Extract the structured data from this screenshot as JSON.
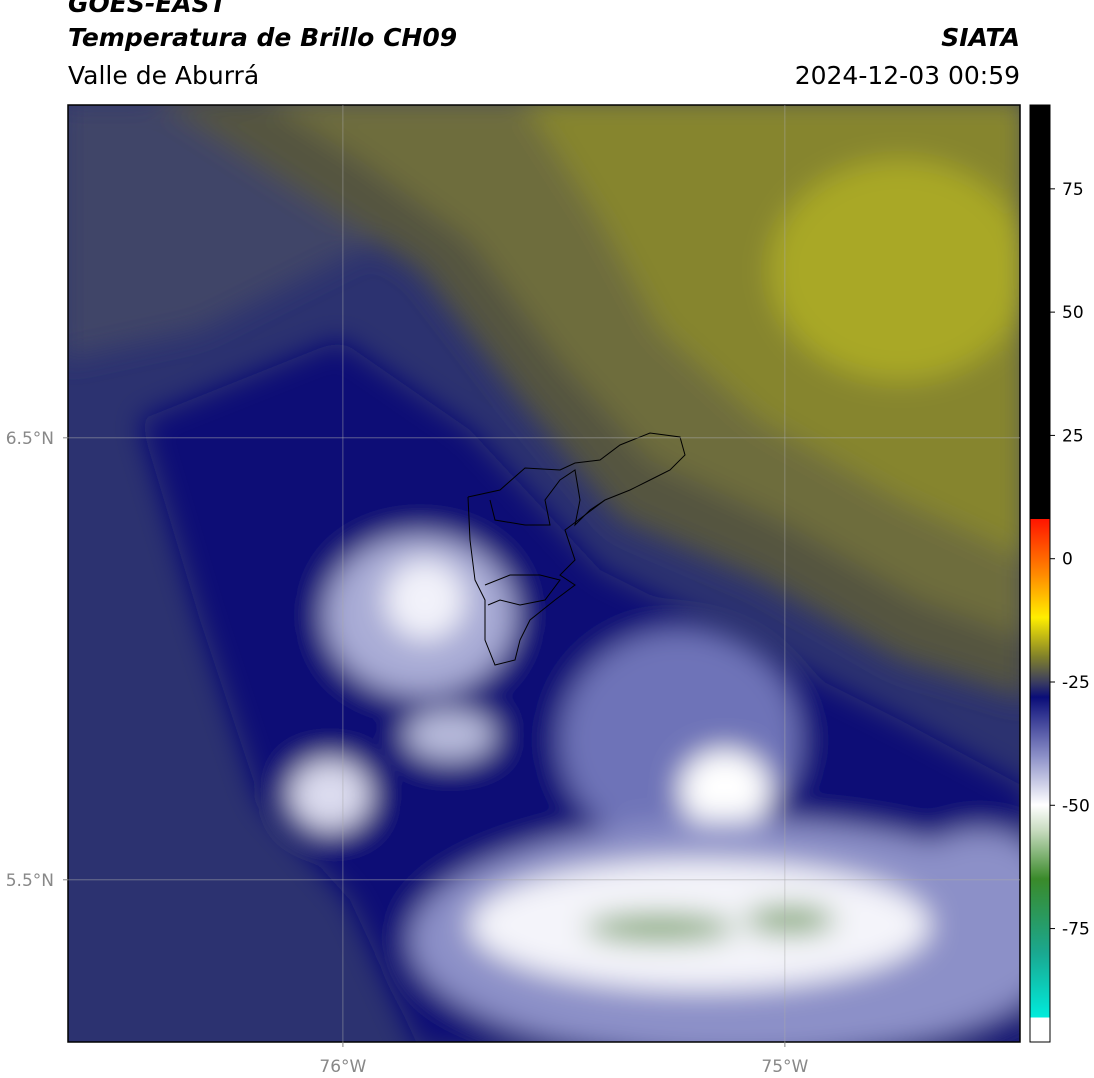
{
  "header": {
    "title": "GOES-EAST",
    "subtitle": "Temperatura de Brillo CH09",
    "region": "Valle de Aburrá",
    "source": "SIATA",
    "datetime": "2024-12-03 00:59"
  },
  "map": {
    "xlim": [
      -76.622,
      -74.468
    ],
    "ylim": [
      5.133,
      7.253
    ],
    "xticks": [
      {
        "value": -76,
        "label": "76°W"
      },
      {
        "value": -75,
        "label": "75°W"
      }
    ],
    "yticks": [
      {
        "value": 5.5,
        "label": "5.5°N"
      },
      {
        "value": 6.5,
        "label": "6.5°N"
      }
    ]
  },
  "colorbar": {
    "lim": [
      -98,
      92
    ],
    "ticks": [
      -75,
      -50,
      -25,
      0,
      25,
      50,
      75
    ]
  }
}
